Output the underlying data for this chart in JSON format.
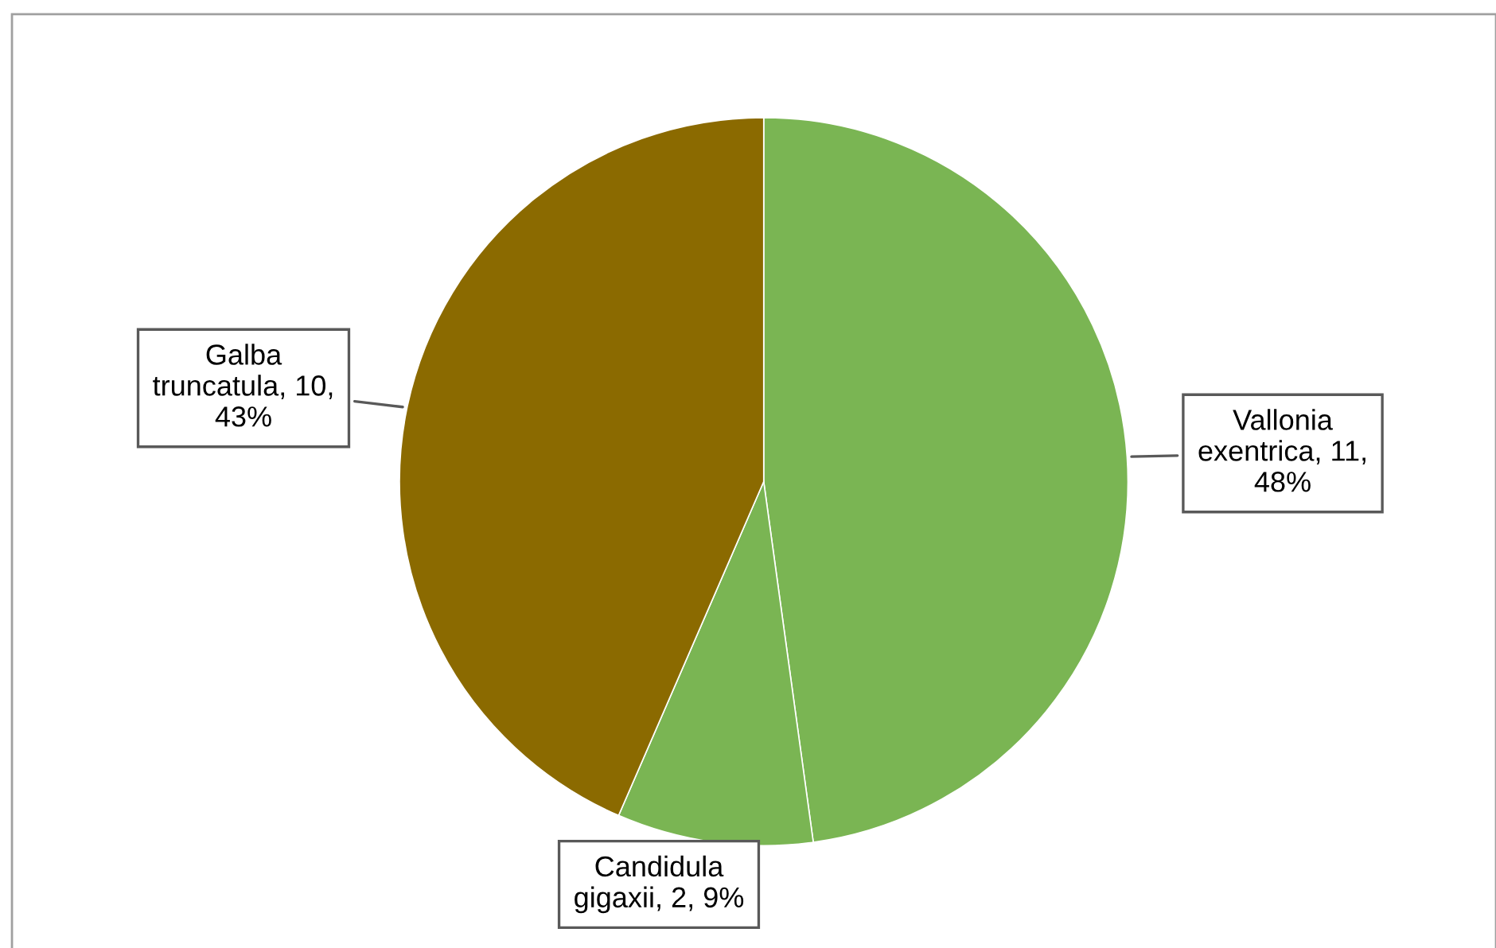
{
  "chart_data": {
    "type": "pie",
    "categories": [
      "Vallonia exentrica",
      "Candidula gigaxii",
      "Galba truncatula"
    ],
    "values": [
      11,
      2,
      10
    ],
    "colors": [
      "#7ab553",
      "#7ab553",
      "#8b6a00"
    ],
    "value_labels": [
      "11, 48%",
      "2, 9%",
      "10, 43%"
    ]
  }
}
